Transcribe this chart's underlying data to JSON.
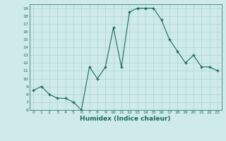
{
  "x": [
    0,
    1,
    2,
    3,
    4,
    5,
    6,
    7,
    8,
    9,
    10,
    11,
    12,
    13,
    14,
    15,
    16,
    17,
    18,
    19,
    20,
    21,
    22,
    23
  ],
  "y": [
    8.5,
    9.0,
    8.0,
    7.5,
    7.5,
    7.0,
    6.0,
    11.5,
    10.0,
    11.5,
    16.5,
    11.5,
    18.5,
    19.0,
    19.0,
    19.0,
    17.5,
    15.0,
    13.5,
    12.0,
    13.0,
    11.5,
    11.5,
    11.0
  ],
  "xlabel": "Humidex (Indice chaleur)",
  "xlim": [
    -0.5,
    23.5
  ],
  "ylim": [
    6,
    19.5
  ],
  "yticks": [
    6,
    7,
    8,
    9,
    10,
    11,
    12,
    13,
    14,
    15,
    16,
    17,
    18,
    19
  ],
  "xticks": [
    0,
    1,
    2,
    3,
    4,
    5,
    6,
    7,
    8,
    9,
    10,
    11,
    12,
    13,
    14,
    15,
    16,
    17,
    18,
    19,
    20,
    21,
    22,
    23
  ],
  "line_color": "#1a6b5a",
  "marker_color": "#1a6b5a",
  "bg_color": "#ceeaea",
  "grid_color": "#afd4d4",
  "xlabel_color": "#1a6b5a",
  "tick_color": "#1a6b5a"
}
